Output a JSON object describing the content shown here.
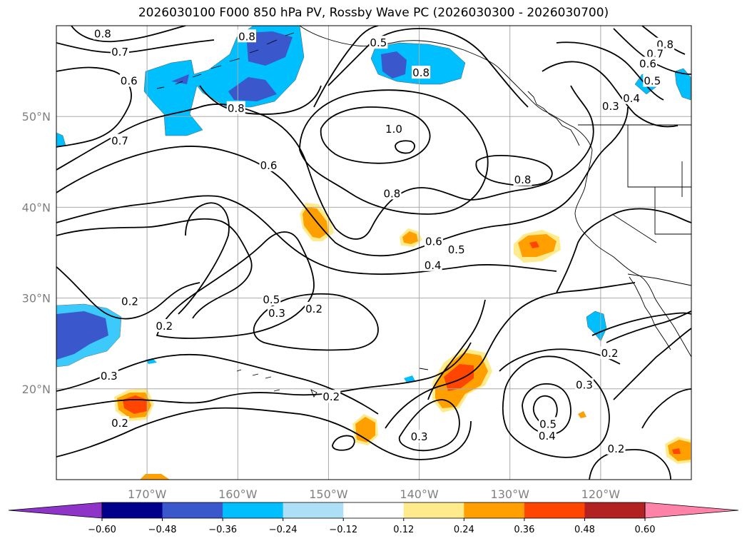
{
  "title": "2026030100 F000 850 hPa PV, Rossby Wave PC (2026030300 - 2026030700)",
  "map": {
    "extent": {
      "lon_min": -180,
      "lon_max": -110,
      "lat_min": 10,
      "lat_max": 60
    },
    "lat_ticks": [
      {
        "lat": 50,
        "label": "50°N"
      },
      {
        "lat": 40,
        "label": "40°N"
      },
      {
        "lat": 30,
        "label": "30°N"
      },
      {
        "lat": 20,
        "label": "20°N"
      }
    ],
    "lon_ticks": [
      {
        "lon": -170,
        "label": "170°W"
      },
      {
        "lon": -160,
        "label": "160°W"
      },
      {
        "lon": -150,
        "label": "150°W"
      },
      {
        "lon": -140,
        "label": "140°W"
      },
      {
        "lon": -130,
        "label": "130°W"
      },
      {
        "lon": -120,
        "label": "120°W"
      }
    ],
    "gridlines": true,
    "contour_labels": [
      {
        "text": "0.8",
        "lon": -174.9,
        "lat": 59.1
      },
      {
        "text": "0.7",
        "lon": -173.0,
        "lat": 57.1
      },
      {
        "text": "0.6",
        "lon": -172.0,
        "lat": 53.9
      },
      {
        "text": "0.8",
        "lon": -159.0,
        "lat": 58.8
      },
      {
        "text": "0.8",
        "lon": -160.2,
        "lat": 50.9
      },
      {
        "text": "0.5",
        "lon": -144.5,
        "lat": 58.1
      },
      {
        "text": "0.8",
        "lon": -139.8,
        "lat": 54.8
      },
      {
        "text": "0.8",
        "lon": -112.9,
        "lat": 57.9
      },
      {
        "text": "0.7",
        "lon": -114.0,
        "lat": 56.9
      },
      {
        "text": "0.6",
        "lon": -114.8,
        "lat": 55.8
      },
      {
        "text": "0.5",
        "lon": -114.3,
        "lat": 53.9
      },
      {
        "text": "0.4",
        "lon": -116.6,
        "lat": 52.0
      },
      {
        "text": "0.3",
        "lon": -118.9,
        "lat": 51.1
      },
      {
        "text": "1.0",
        "lon": -142.8,
        "lat": 48.6
      },
      {
        "text": "0.7",
        "lon": -173.0,
        "lat": 47.3
      },
      {
        "text": "0.6",
        "lon": -156.6,
        "lat": 44.6
      },
      {
        "text": "0.8",
        "lon": -128.6,
        "lat": 43.0
      },
      {
        "text": "0.8",
        "lon": -143.0,
        "lat": 41.5
      },
      {
        "text": "0.6",
        "lon": -138.4,
        "lat": 36.2
      },
      {
        "text": "0.5",
        "lon": -135.9,
        "lat": 35.3
      },
      {
        "text": "0.4",
        "lon": -138.5,
        "lat": 33.6
      },
      {
        "text": "0.5",
        "lon": -156.3,
        "lat": 29.8
      },
      {
        "text": "0.3",
        "lon": -155.7,
        "lat": 28.3
      },
      {
        "text": "0.2",
        "lon": -151.6,
        "lat": 28.8
      },
      {
        "text": "0.2",
        "lon": -171.9,
        "lat": 29.6
      },
      {
        "text": "0.2",
        "lon": -168.1,
        "lat": 26.9
      },
      {
        "text": "0.2",
        "lon": -119.0,
        "lat": 23.9
      },
      {
        "text": "0.3",
        "lon": -174.2,
        "lat": 21.4
      },
      {
        "text": "0.3",
        "lon": -121.8,
        "lat": 20.4
      },
      {
        "text": "0.2",
        "lon": -149.7,
        "lat": 19.1
      },
      {
        "text": "0.2",
        "lon": -173.0,
        "lat": 16.2
      },
      {
        "text": "0.5",
        "lon": -125.8,
        "lat": 16.1
      },
      {
        "text": "0.4",
        "lon": -125.9,
        "lat": 14.8
      },
      {
        "text": "0.3",
        "lon": -140.0,
        "lat": 14.7
      },
      {
        "text": "0.2",
        "lon": -118.3,
        "lat": 13.4
      }
    ]
  },
  "colorbar": {
    "boundaries": [
      -0.72,
      -0.6,
      -0.48,
      -0.36,
      -0.24,
      -0.12,
      0.12,
      0.24,
      0.36,
      0.48,
      0.6,
      0.72
    ],
    "colors": [
      "#8f34c9",
      "#00008b",
      "#3a57cc",
      "#00bfff",
      "#ade0f7",
      "#ffffff",
      "#ffea8c",
      "#ffa000",
      "#ff4500",
      "#b22222",
      "#ff82a9"
    ],
    "tick_labels": [
      "−0.60",
      "−0.48",
      "−0.36",
      "−0.24",
      "−0.12",
      "0.12",
      "0.24",
      "0.36",
      "0.48",
      "0.60"
    ]
  }
}
